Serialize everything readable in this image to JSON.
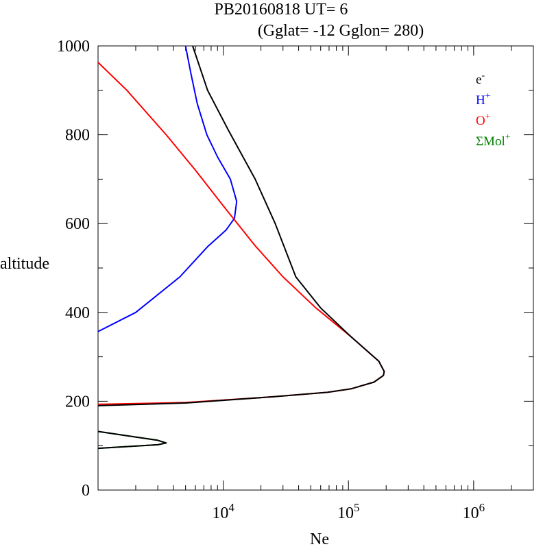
{
  "chart_data": {
    "type": "line",
    "title": "PB20160818   UT=  6",
    "subtitle": "(Gglat= -12   Gglon=  280)",
    "xlabel": "Ne",
    "ylabel": "altitude",
    "xscale": "log",
    "xlim": [
      1000,
      3000000
    ],
    "ylim": [
      0,
      1000
    ],
    "x_ticks": [
      {
        "value": 10000,
        "base": "10",
        "exp": "4"
      },
      {
        "value": 100000,
        "base": "10",
        "exp": "5"
      },
      {
        "value": 1000000,
        "base": "10",
        "exp": "6"
      }
    ],
    "y_ticks": [
      {
        "value": 0,
        "label": "0"
      },
      {
        "value": 200,
        "label": "200"
      },
      {
        "value": 400,
        "label": "400"
      },
      {
        "value": 600,
        "label": "600"
      },
      {
        "value": 800,
        "label": "800"
      },
      {
        "value": 1000,
        "label": "1000"
      }
    ],
    "legend_position": "top-right",
    "legend": [
      {
        "base": "e",
        "sup": "-",
        "color": "#000000"
      },
      {
        "base": "H",
        "sup": "+",
        "color": "#0000ff"
      },
      {
        "base": "O",
        "sup": "+",
        "color": "#ff0000"
      },
      {
        "base": "ΣMol",
        "sup": "+",
        "color": "#008000"
      }
    ],
    "series": [
      {
        "color": "#008000",
        "width": 2,
        "points": [
          [
            1000,
            94
          ],
          [
            3000,
            102
          ],
          [
            3500,
            106
          ],
          [
            3000,
            112
          ],
          [
            1000,
            132
          ]
        ]
      },
      {
        "color": "#0000ff",
        "width": 2,
        "points": [
          [
            1000,
            357
          ],
          [
            2000,
            400
          ],
          [
            4500,
            480
          ],
          [
            7500,
            548
          ],
          [
            10500,
            585
          ],
          [
            12300,
            612
          ],
          [
            12800,
            650
          ],
          [
            11400,
            700
          ],
          [
            9000,
            750
          ],
          [
            7400,
            800
          ],
          [
            6200,
            870
          ],
          [
            5500,
            940
          ],
          [
            5000,
            1000
          ]
        ]
      },
      {
        "color": "#ff0000",
        "width": 2,
        "points": [
          [
            1000,
            193
          ],
          [
            5000,
            197
          ],
          [
            25000,
            210
          ],
          [
            68000,
            220
          ],
          [
            105000,
            228
          ],
          [
            160000,
            243
          ],
          [
            190000,
            258
          ],
          [
            193000,
            267
          ],
          [
            175000,
            290
          ],
          [
            105000,
            345
          ],
          [
            55000,
            410
          ],
          [
            30000,
            480
          ],
          [
            18000,
            550
          ],
          [
            10000,
            640
          ],
          [
            6000,
            720
          ],
          [
            3500,
            800
          ],
          [
            1700,
            900
          ],
          [
            1000,
            963
          ]
        ]
      },
      {
        "color": "#000000",
        "width": 2,
        "points": [
          [
            1000,
            94
          ],
          [
            3000,
            102
          ],
          [
            3500,
            106
          ],
          [
            3000,
            112
          ],
          [
            1000,
            132
          ],
          [
            null,
            null
          ],
          [
            1000,
            190
          ],
          [
            5000,
            196
          ],
          [
            25000,
            210
          ],
          [
            68000,
            220
          ],
          [
            105000,
            228
          ],
          [
            160000,
            243
          ],
          [
            190000,
            258
          ],
          [
            193000,
            267
          ],
          [
            175000,
            290
          ],
          [
            105000,
            345
          ],
          [
            60000,
            410
          ],
          [
            38000,
            480
          ],
          [
            26000,
            600
          ],
          [
            18000,
            700
          ],
          [
            11000,
            810
          ],
          [
            7500,
            900
          ],
          [
            5700,
            1000
          ]
        ]
      }
    ]
  }
}
